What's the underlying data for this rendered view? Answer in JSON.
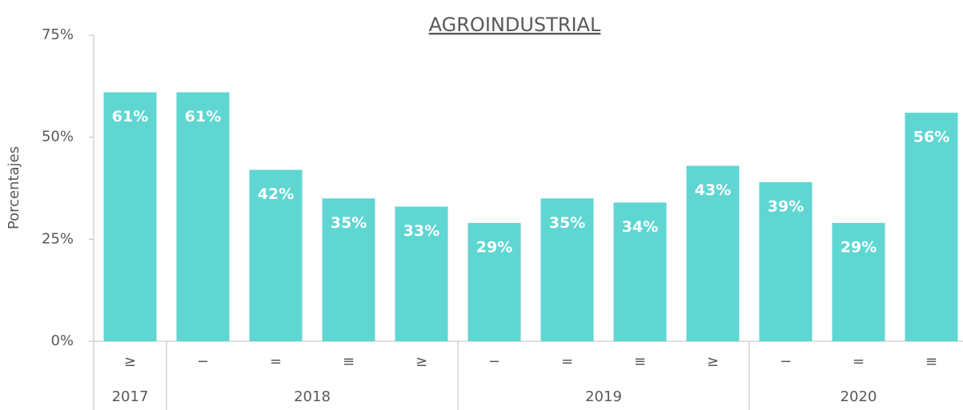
{
  "chart_data": {
    "type": "bar",
    "title": "AGROINDUSTRIAL",
    "y_label": "Porcentajes",
    "categories": [
      "≥",
      "−",
      "=",
      "≡",
      "≥",
      "−",
      "=",
      "≡",
      "≥",
      "−",
      "=",
      "≡"
    ],
    "category_groups": [
      {
        "label": "2017",
        "count": 1
      },
      {
        "label": "2018",
        "count": 4
      },
      {
        "label": "2019",
        "count": 4
      },
      {
        "label": "2020",
        "count": 3
      }
    ],
    "values": [
      61,
      61,
      42,
      35,
      33,
      29,
      35,
      34,
      43,
      39,
      29,
      56
    ],
    "value_labels": [
      "61%",
      "61%",
      "42%",
      "35%",
      "33%",
      "29%",
      "35%",
      "34%",
      "43%",
      "39%",
      "29%",
      "56%"
    ],
    "color": "#5fd6d2",
    "ylim": [
      0,
      75
    ],
    "yticks": [
      {
        "value": 0,
        "label": "0%"
      },
      {
        "value": 25,
        "label": "25%"
      },
      {
        "value": 50,
        "label": "50%"
      },
      {
        "value": 75,
        "label": "75%"
      }
    ],
    "grid": false
  }
}
